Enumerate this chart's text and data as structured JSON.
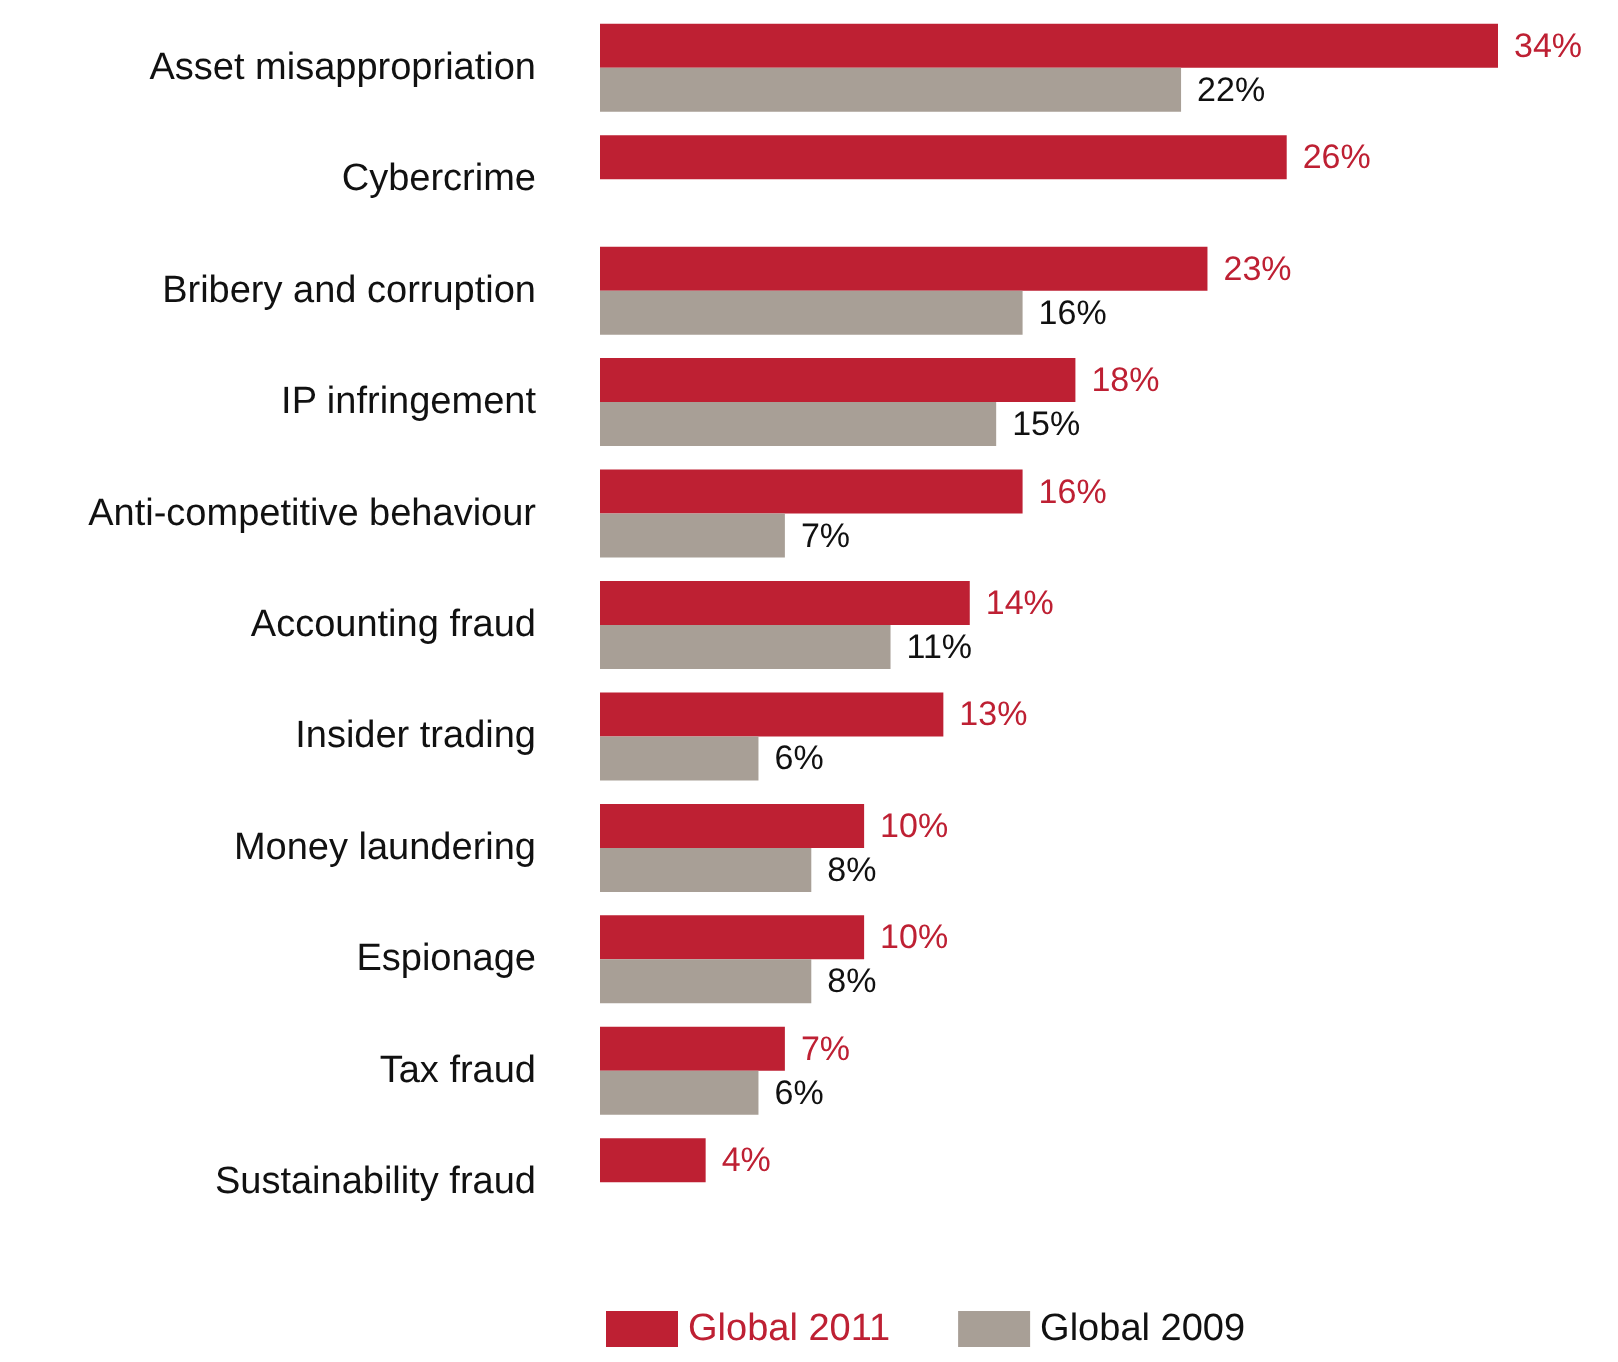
{
  "chart_data": {
    "type": "bar",
    "orientation": "horizontal",
    "categories": [
      "Asset misappropriation",
      "Cybercrime",
      "Bribery and corruption",
      "IP infringement",
      "Anti-competitive behaviour",
      "Accounting fraud",
      "Insider trading",
      "Money laundering",
      "Espionage",
      "Tax fraud",
      "Sustainability fraud"
    ],
    "series": [
      {
        "name": "Global 2011",
        "color": "#be2033",
        "values": [
          34,
          26,
          23,
          18,
          16,
          14,
          13,
          10,
          10,
          7,
          4
        ],
        "value_labels": [
          "34%",
          "26%",
          "23%",
          "18%",
          "16%",
          "14%",
          "13%",
          "10%",
          "10%",
          "7%",
          "4%"
        ]
      },
      {
        "name": "Global 2009",
        "color": "#a89f96",
        "values": [
          22,
          null,
          16,
          15,
          7,
          11,
          6,
          8,
          8,
          6,
          null
        ],
        "value_labels": [
          "22%",
          null,
          "16%",
          "15%",
          "7%",
          "11%",
          "6%",
          "8%",
          "8%",
          "6%",
          null
        ]
      }
    ],
    "legend": "bottom",
    "tick_labels": "y"
  }
}
